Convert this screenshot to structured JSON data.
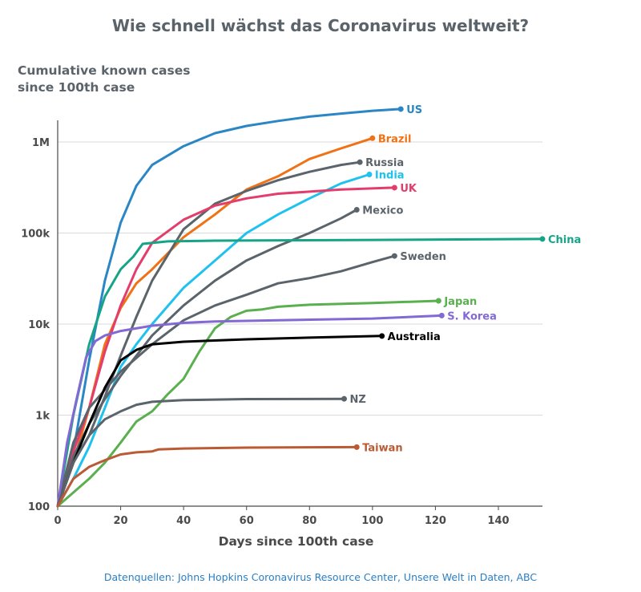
{
  "title": "Wie schnell wächst das Coronavirus weltweit?",
  "source": "Datenquellen: Johns Hopkins Coronavirus Resource Center, Unsere Welt in Daten, ABC",
  "chart_data": {
    "type": "line",
    "title": "Wie schnell wächst das Coronavirus weltweit?",
    "ylabel": "Cumulative known cases since 100th case",
    "xlabel": "Days since 100th case",
    "yscale": "log",
    "xlim": [
      0,
      154
    ],
    "ylim": [
      100,
      2500000
    ],
    "x_ticks": [
      0,
      20,
      40,
      60,
      80,
      100,
      120,
      140
    ],
    "y_ticks": [
      100,
      1000,
      10000,
      100000,
      1000000
    ],
    "y_tick_labels": [
      "100",
      "1k",
      "10k",
      "100k",
      "1M"
    ],
    "grid": "horizontal",
    "series": [
      {
        "name": "US",
        "color": "#2a86c4",
        "points": [
          [
            0,
            100
          ],
          [
            5,
            400
          ],
          [
            10,
            4000
          ],
          [
            15,
            30000
          ],
          [
            20,
            130000
          ],
          [
            25,
            330000
          ],
          [
            30,
            560000
          ],
          [
            40,
            900000
          ],
          [
            50,
            1250000
          ],
          [
            60,
            1500000
          ],
          [
            70,
            1700000
          ],
          [
            80,
            1900000
          ],
          [
            90,
            2050000
          ],
          [
            100,
            2200000
          ],
          [
            109,
            2300000
          ]
        ]
      },
      {
        "name": "Brazil",
        "color": "#f07216",
        "points": [
          [
            0,
            100
          ],
          [
            5,
            300
          ],
          [
            10,
            1200
          ],
          [
            15,
            6000
          ],
          [
            20,
            15000
          ],
          [
            25,
            28000
          ],
          [
            30,
            40000
          ],
          [
            40,
            90000
          ],
          [
            50,
            160000
          ],
          [
            60,
            300000
          ],
          [
            70,
            420000
          ],
          [
            80,
            650000
          ],
          [
            90,
            850000
          ],
          [
            100,
            1100000
          ]
        ]
      },
      {
        "name": "Russia",
        "color": "#5b646b",
        "points": [
          [
            0,
            100
          ],
          [
            5,
            300
          ],
          [
            10,
            600
          ],
          [
            15,
            1600
          ],
          [
            20,
            4500
          ],
          [
            25,
            12000
          ],
          [
            30,
            30000
          ],
          [
            40,
            110000
          ],
          [
            50,
            210000
          ],
          [
            60,
            290000
          ],
          [
            70,
            380000
          ],
          [
            80,
            470000
          ],
          [
            90,
            560000
          ],
          [
            96,
            600000
          ]
        ]
      },
      {
        "name": "India",
        "color": "#1fc2ef",
        "points": [
          [
            0,
            100
          ],
          [
            5,
            200
          ],
          [
            10,
            450
          ],
          [
            15,
            1200
          ],
          [
            20,
            3400
          ],
          [
            25,
            6000
          ],
          [
            30,
            10000
          ],
          [
            40,
            25000
          ],
          [
            50,
            50000
          ],
          [
            60,
            100000
          ],
          [
            70,
            160000
          ],
          [
            80,
            240000
          ],
          [
            90,
            350000
          ],
          [
            99,
            440000
          ]
        ]
      },
      {
        "name": "UK",
        "color": "#e23d6c",
        "points": [
          [
            0,
            100
          ],
          [
            5,
            400
          ],
          [
            10,
            1200
          ],
          [
            15,
            5000
          ],
          [
            20,
            16000
          ],
          [
            25,
            40000
          ],
          [
            30,
            78000
          ],
          [
            40,
            140000
          ],
          [
            50,
            200000
          ],
          [
            60,
            240000
          ],
          [
            70,
            270000
          ],
          [
            80,
            285000
          ],
          [
            90,
            300000
          ],
          [
            107,
            315000
          ]
        ]
      },
      {
        "name": "Mexico",
        "color": "#5b646b",
        "points": [
          [
            0,
            100
          ],
          [
            5,
            350
          ],
          [
            10,
            800
          ],
          [
            15,
            1500
          ],
          [
            20,
            2700
          ],
          [
            25,
            4500
          ],
          [
            30,
            7500
          ],
          [
            40,
            16000
          ],
          [
            50,
            30000
          ],
          [
            60,
            50000
          ],
          [
            70,
            72000
          ],
          [
            80,
            100000
          ],
          [
            90,
            145000
          ],
          [
            95,
            180000
          ]
        ]
      },
      {
        "name": "China",
        "color": "#16a487",
        "points": [
          [
            0,
            100
          ],
          [
            5,
            1000
          ],
          [
            10,
            6000
          ],
          [
            15,
            20000
          ],
          [
            20,
            40000
          ],
          [
            24,
            55000
          ],
          [
            27,
            76000
          ],
          [
            35,
            81000
          ],
          [
            50,
            82500
          ],
          [
            100,
            84000
          ],
          [
            154,
            86000
          ]
        ]
      },
      {
        "name": "Sweden",
        "color": "#5b646b",
        "points": [
          [
            0,
            100
          ],
          [
            5,
            500
          ],
          [
            10,
            1200
          ],
          [
            15,
            1900
          ],
          [
            20,
            3000
          ],
          [
            30,
            6000
          ],
          [
            40,
            11000
          ],
          [
            50,
            16000
          ],
          [
            60,
            21000
          ],
          [
            70,
            28000
          ],
          [
            80,
            32000
          ],
          [
            90,
            38000
          ],
          [
            100,
            48000
          ],
          [
            107,
            56000
          ]
        ]
      },
      {
        "name": "Japan",
        "color": "#5aaf4f",
        "points": [
          [
            0,
            100
          ],
          [
            10,
            200
          ],
          [
            15,
            300
          ],
          [
            20,
            500
          ],
          [
            25,
            850
          ],
          [
            30,
            1100
          ],
          [
            35,
            1700
          ],
          [
            40,
            2500
          ],
          [
            45,
            5000
          ],
          [
            50,
            9000
          ],
          [
            55,
            12000
          ],
          [
            60,
            14000
          ],
          [
            65,
            14500
          ],
          [
            70,
            15500
          ],
          [
            80,
            16300
          ],
          [
            100,
            17000
          ],
          [
            121,
            18000
          ]
        ]
      },
      {
        "name": "S. Korea",
        "color": "#8269d4",
        "points": [
          [
            0,
            100
          ],
          [
            3,
            500
          ],
          [
            6,
            1500
          ],
          [
            9,
            4300
          ],
          [
            12,
            6500
          ],
          [
            15,
            7500
          ],
          [
            20,
            8400
          ],
          [
            30,
            9600
          ],
          [
            40,
            10300
          ],
          [
            50,
            10700
          ],
          [
            70,
            11000
          ],
          [
            100,
            11500
          ],
          [
            122,
            12400
          ]
        ]
      },
      {
        "name": "Australia",
        "color": "#000000",
        "points": [
          [
            0,
            100
          ],
          [
            5,
            300
          ],
          [
            10,
            800
          ],
          [
            15,
            2000
          ],
          [
            20,
            4000
          ],
          [
            25,
            5200
          ],
          [
            30,
            6000
          ],
          [
            40,
            6400
          ],
          [
            60,
            6800
          ],
          [
            80,
            7100
          ],
          [
            103,
            7400
          ]
        ]
      },
      {
        "name": "NZ",
        "color": "#5b646b",
        "points": [
          [
            0,
            100
          ],
          [
            5,
            300
          ],
          [
            10,
            600
          ],
          [
            15,
            900
          ],
          [
            20,
            1100
          ],
          [
            25,
            1300
          ],
          [
            30,
            1400
          ],
          [
            40,
            1460
          ],
          [
            60,
            1500
          ],
          [
            91,
            1510
          ]
        ]
      },
      {
        "name": "Taiwan",
        "color": "#bb5b35",
        "points": [
          [
            0,
            100
          ],
          [
            5,
            200
          ],
          [
            10,
            270
          ],
          [
            15,
            320
          ],
          [
            20,
            370
          ],
          [
            25,
            390
          ],
          [
            30,
            400
          ],
          [
            32,
            420
          ],
          [
            40,
            430
          ],
          [
            60,
            440
          ],
          [
            95,
            445
          ]
        ]
      }
    ]
  }
}
